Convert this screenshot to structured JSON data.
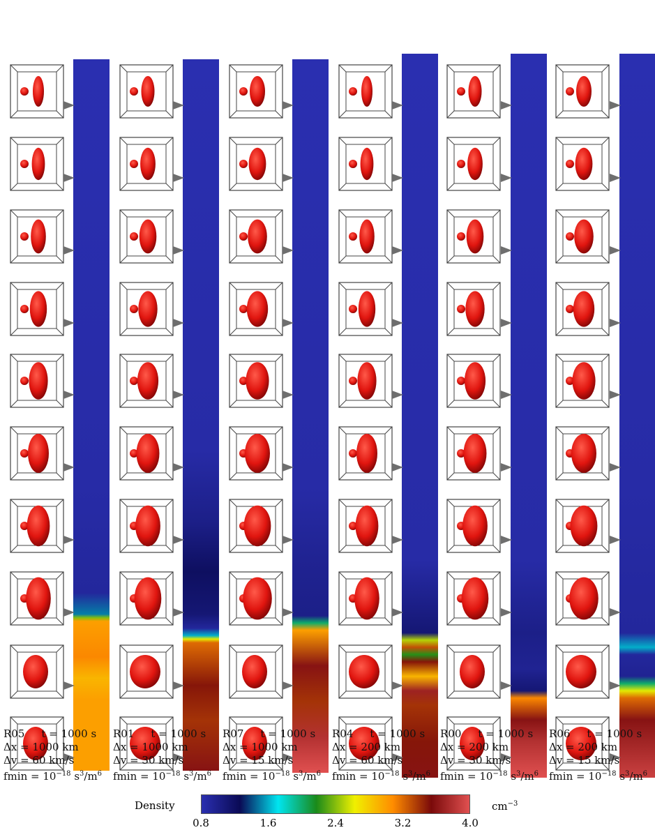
{
  "colors": {
    "isosurface": "#e0150f",
    "isosurface_dark": "#7a0505",
    "arrow": "#6e6e6e",
    "box_line": "#444444",
    "colormap": [
      "#2a2fb0",
      "#0a0a55",
      "#00e5f0",
      "#1a8a1a",
      "#f0f000",
      "#ff8c00",
      "#7a0a0a",
      "#e05050"
    ]
  },
  "colorbar": {
    "title": "Density",
    "unit_base": "cm",
    "unit_exp": "−3",
    "min": 0.8,
    "max": 4.0,
    "ticks": [
      "0.8",
      "1.6",
      "2.4",
      "3.2",
      "4.0"
    ]
  },
  "chart_data": {
    "type": "heatmap",
    "columns": [
      {
        "run": "R05",
        "time": "t = 1000 s",
        "dx": "Δx = 1000 km",
        "dv": "Δv = 60 km/s",
        "fmin_base": "fmin = 10",
        "fmin_exp": "−18",
        "fmin_unit": " s",
        "fmin_unit_exp": "3",
        "fmin_unit2": "/m",
        "fmin_unit2_exp": "6",
        "profile": [
          [
            0.0,
            0.8
          ],
          [
            0.6,
            0.85
          ],
          [
            0.75,
            0.9
          ],
          [
            0.78,
            1.5
          ],
          [
            0.785,
            2.4
          ],
          [
            0.79,
            3.0
          ],
          [
            0.84,
            3.1
          ],
          [
            0.87,
            2.9
          ],
          [
            0.9,
            3.0
          ],
          [
            0.95,
            3.0
          ],
          [
            1.0,
            3.0
          ]
        ],
        "arrow_events": 10
      },
      {
        "run": "R01",
        "time": "t = 1000 s",
        "dx": "Δx = 1000 km",
        "dv": "Δv = 30 km/s",
        "fmin_base": "fmin = 10",
        "fmin_exp": "−18",
        "fmin_unit": " s",
        "fmin_unit_exp": "3",
        "fmin_unit2": "/m",
        "fmin_unit2_exp": "6",
        "profile": [
          [
            0.0,
            0.8
          ],
          [
            0.55,
            0.85
          ],
          [
            0.65,
            1.0
          ],
          [
            0.72,
            1.2
          ],
          [
            0.78,
            1.1
          ],
          [
            0.8,
            0.9
          ],
          [
            0.81,
            1.6
          ],
          [
            0.815,
            2.6
          ],
          [
            0.82,
            3.2
          ],
          [
            0.88,
            3.5
          ],
          [
            0.93,
            3.4
          ],
          [
            1.0,
            3.6
          ]
        ],
        "arrow_events": 10
      },
      {
        "run": "R07",
        "time": "t = 1000 s",
        "dx": "Δx = 1000 km",
        "dv": "Δv = 15 km/s",
        "fmin_base": "fmin = 10",
        "fmin_exp": "−18",
        "fmin_unit": " s",
        "fmin_unit_exp": "3",
        "fmin_unit2": "/m",
        "fmin_unit2_exp": "6",
        "profile": [
          [
            0.0,
            0.8
          ],
          [
            0.6,
            0.85
          ],
          [
            0.7,
            0.95
          ],
          [
            0.78,
            1.0
          ],
          [
            0.79,
            2.0
          ],
          [
            0.8,
            3.0
          ],
          [
            0.85,
            3.6
          ],
          [
            0.9,
            3.4
          ],
          [
            0.95,
            3.8
          ],
          [
            1.0,
            4.0
          ]
        ],
        "arrow_events": 10
      },
      {
        "run": "R04",
        "time": "t = 1000 s",
        "dx": "Δx = 200 km",
        "dv": "Δv = 60 km/s",
        "fmin_base": "fmin = 10",
        "fmin_exp": "−18",
        "fmin_unit": " s",
        "fmin_unit_exp": "3",
        "fmin_unit2": "/m",
        "fmin_unit2_exp": "6",
        "profile": [
          [
            0.0,
            0.8
          ],
          [
            0.7,
            0.85
          ],
          [
            0.76,
            1.0
          ],
          [
            0.8,
            1.1
          ],
          [
            0.81,
            2.5
          ],
          [
            0.82,
            3.3
          ],
          [
            0.83,
            2.2
          ],
          [
            0.84,
            3.5
          ],
          [
            0.86,
            2.9
          ],
          [
            0.88,
            3.7
          ],
          [
            0.9,
            3.4
          ],
          [
            0.95,
            3.5
          ],
          [
            1.0,
            3.6
          ]
        ],
        "arrow_events": 10
      },
      {
        "run": "R00",
        "time": "t = 1000 s",
        "dx": "Δx = 200 km",
        "dv": "Δv = 30 km/s",
        "fmin_base": "fmin = 10",
        "fmin_exp": "−18",
        "fmin_unit": " s",
        "fmin_unit_exp": "3",
        "fmin_unit2": "/m",
        "fmin_unit2_exp": "6",
        "profile": [
          [
            0.0,
            0.8
          ],
          [
            0.7,
            0.85
          ],
          [
            0.8,
            1.0
          ],
          [
            0.85,
            0.95
          ],
          [
            0.88,
            1.1
          ],
          [
            0.89,
            3.1
          ],
          [
            0.92,
            3.6
          ],
          [
            0.95,
            3.8
          ],
          [
            1.0,
            4.0
          ]
        ],
        "arrow_events": 10
      },
      {
        "run": "R06",
        "time": "t = 1000 s",
        "dx": "Δx = 200 km",
        "dv": "Δv = 15 km/s",
        "fmin_base": "fmin = 10",
        "fmin_exp": "−18",
        "fmin_unit": " s",
        "fmin_unit_exp": "3",
        "fmin_unit2": "/m",
        "fmin_unit2_exp": "6",
        "profile": [
          [
            0.0,
            0.8
          ],
          [
            0.6,
            0.85
          ],
          [
            0.8,
            0.9
          ],
          [
            0.82,
            1.6
          ],
          [
            0.83,
            0.9
          ],
          [
            0.86,
            0.95
          ],
          [
            0.87,
            2.0
          ],
          [
            0.88,
            2.6
          ],
          [
            0.89,
            3.2
          ],
          [
            0.92,
            3.6
          ],
          [
            1.0,
            3.9
          ]
        ],
        "arrow_events": 10
      }
    ]
  }
}
